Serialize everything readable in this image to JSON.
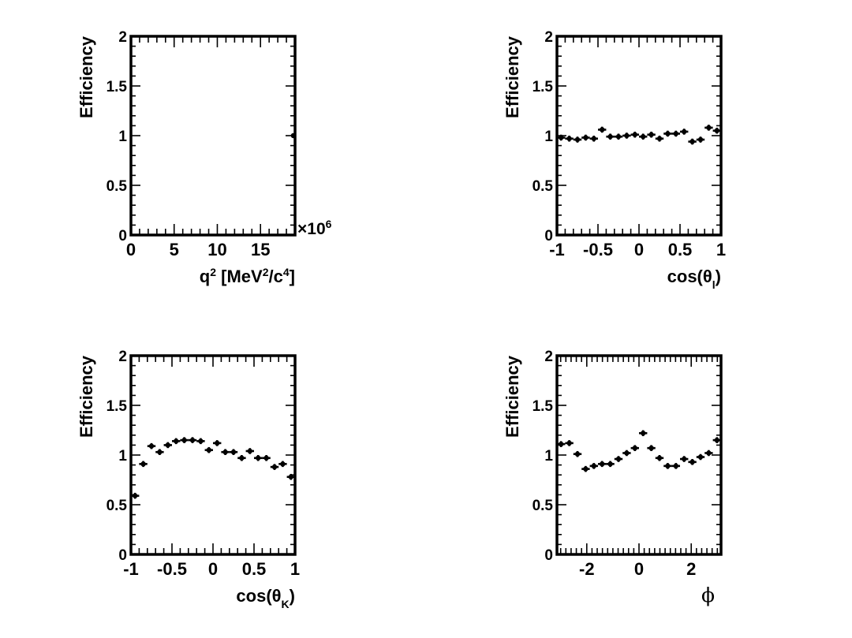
{
  "chart_data": [
    {
      "type": "scatter",
      "title": "",
      "xlabel": "q² [MeV²/c⁴]",
      "ylabel": "Efficiency",
      "x_multiplier_label": "×10⁶",
      "xlim": [
        0,
        19.0
      ],
      "ylim": [
        0,
        2
      ],
      "x_major_ticks": [
        0,
        5,
        10,
        15
      ],
      "x_tick_labels": [
        "0",
        "5",
        "10",
        "15"
      ],
      "x_minor_step": 1,
      "y_major_ticks": [
        0,
        0.5,
        1,
        1.5,
        2
      ],
      "y_tick_labels": [
        "0",
        "0.5",
        "1",
        "1.5",
        "2"
      ],
      "y_minor_step": 0.1,
      "grid": false,
      "series": [
        {
          "x": [
            18.8
          ],
          "y": [
            1.0
          ],
          "xerr": 0.05,
          "yerr": 0.01
        }
      ]
    },
    {
      "type": "scatter",
      "title": "",
      "xlabel": "cos(θl)",
      "ylabel": "Efficiency",
      "xlim": [
        -1,
        1
      ],
      "ylim": [
        0,
        2
      ],
      "x_major_ticks": [
        -1,
        -0.5,
        0,
        0.5,
        1
      ],
      "x_tick_labels": [
        "-1",
        "-0.5",
        "0",
        "0.5",
        "1"
      ],
      "x_minor_step": 0.1,
      "y_major_ticks": [
        0,
        0.5,
        1,
        1.5,
        2
      ],
      "y_tick_labels": [
        "0",
        "0.5",
        "1",
        "1.5",
        "2"
      ],
      "y_minor_step": 0.1,
      "grid": false,
      "series": [
        {
          "x": [
            -0.95,
            -0.85,
            -0.75,
            -0.65,
            -0.55,
            -0.45,
            -0.35,
            -0.25,
            -0.15,
            -0.05,
            0.05,
            0.15,
            0.25,
            0.35,
            0.45,
            0.55,
            0.65,
            0.75,
            0.85,
            0.95
          ],
          "y": [
            0.98,
            0.97,
            0.96,
            0.98,
            0.97,
            1.06,
            0.99,
            0.99,
            1.0,
            1.01,
            0.99,
            1.01,
            0.97,
            1.02,
            1.02,
            1.04,
            0.94,
            0.96,
            1.08,
            1.05
          ],
          "xerr": 0.05,
          "yerr": 0.03
        }
      ]
    },
    {
      "type": "scatter",
      "title": "",
      "xlabel": "cos(θK)",
      "ylabel": "Efficiency",
      "xlim": [
        -1,
        1
      ],
      "ylim": [
        0,
        2
      ],
      "x_major_ticks": [
        -1,
        -0.5,
        0,
        0.5,
        1
      ],
      "x_tick_labels": [
        "-1",
        "-0.5",
        "0",
        "0.5",
        "1"
      ],
      "x_minor_step": 0.1,
      "y_major_ticks": [
        0,
        0.5,
        1,
        1.5,
        2
      ],
      "y_tick_labels": [
        "0",
        "0.5",
        "1",
        "1.5",
        "2"
      ],
      "y_minor_step": 0.1,
      "grid": false,
      "series": [
        {
          "x": [
            -0.95,
            -0.85,
            -0.75,
            -0.65,
            -0.55,
            -0.45,
            -0.35,
            -0.25,
            -0.15,
            -0.05,
            0.05,
            0.15,
            0.25,
            0.35,
            0.45,
            0.55,
            0.65,
            0.75,
            0.85,
            0.95
          ],
          "y": [
            0.59,
            0.91,
            1.09,
            1.03,
            1.1,
            1.14,
            1.15,
            1.15,
            1.14,
            1.05,
            1.12,
            1.03,
            1.03,
            0.97,
            1.04,
            0.97,
            0.97,
            0.88,
            0.91,
            0.78
          ],
          "xerr": 0.05,
          "yerr": 0.03
        }
      ]
    },
    {
      "type": "scatter",
      "title": "",
      "xlabel": "ϕ",
      "ylabel": "Efficiency",
      "xlim": [
        -3.1416,
        3.1416
      ],
      "ylim": [
        0,
        2
      ],
      "x_major_ticks": [
        -2,
        0,
        2
      ],
      "x_tick_labels": [
        "-2",
        "0",
        "2"
      ],
      "x_minor_step": 0.2,
      "y_major_ticks": [
        0,
        0.5,
        1,
        1.5,
        2
      ],
      "y_tick_labels": [
        "0",
        "0.5",
        "1",
        "1.5",
        "2"
      ],
      "y_minor_step": 0.1,
      "grid": false,
      "series": [
        {
          "x": [
            -2.985,
            -2.67,
            -2.356,
            -2.042,
            -1.728,
            -1.414,
            -1.1,
            -0.785,
            -0.471,
            -0.157,
            0.157,
            0.471,
            0.785,
            1.1,
            1.414,
            1.728,
            2.042,
            2.356,
            2.67,
            2.985
          ],
          "y": [
            1.11,
            1.12,
            1.01,
            0.86,
            0.89,
            0.91,
            0.91,
            0.96,
            1.02,
            1.07,
            1.22,
            1.07,
            0.97,
            0.89,
            0.89,
            0.96,
            0.93,
            0.98,
            1.02,
            1.15
          ],
          "xerr": 0.157,
          "yerr": 0.03
        }
      ]
    }
  ]
}
